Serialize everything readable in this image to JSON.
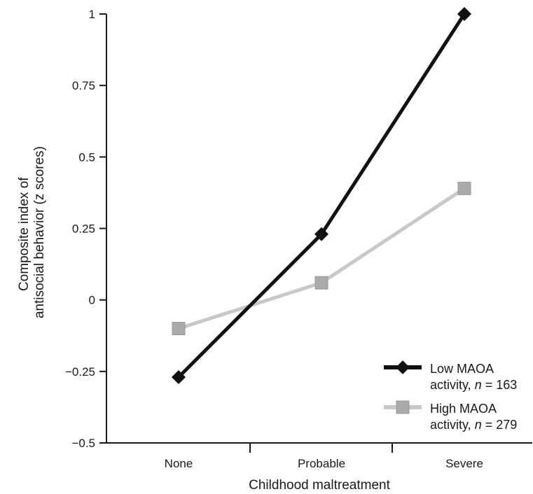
{
  "chart_data": {
    "type": "line",
    "categories": [
      "None",
      "Probable",
      "Severe"
    ],
    "series": [
      {
        "name": "Low MAOA activity, n = 163",
        "name_lines": [
          "Low MAOA",
          "activity, ",
          "n",
          " = 163"
        ],
        "values": [
          -0.27,
          0.23,
          1.0
        ],
        "color": "#111111",
        "marker": "diamond"
      },
      {
        "name": "High MAOA activity, n = 279",
        "name_lines": [
          "High MAOA",
          "activity, ",
          "n",
          " = 279"
        ],
        "values": [
          -0.1,
          0.06,
          0.39
        ],
        "color": "#c8c8c8",
        "marker_color": "#aaaaaa",
        "marker": "square"
      }
    ],
    "title": "",
    "xlabel": "Childhood maltreatment",
    "ylabel_lines": [
      "Composite index of",
      "antisocial behavior (z scores)"
    ],
    "ylim": [
      -0.5,
      1
    ],
    "yticks": [
      -0.5,
      -0.25,
      0,
      0.25,
      0.5,
      0.75,
      1
    ],
    "ytick_labels": [
      "−0.5",
      "−0.25",
      "0",
      "0.25",
      "0.5",
      "0.75",
      "1"
    ],
    "grid": false,
    "legend_position": "bottom-right"
  }
}
